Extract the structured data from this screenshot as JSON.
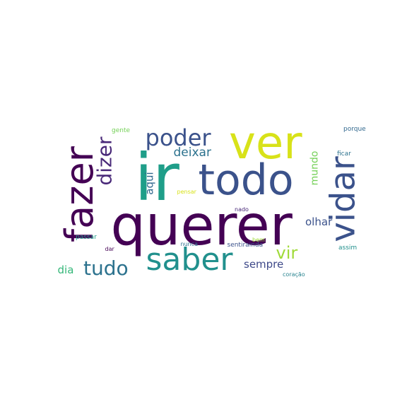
{
  "wordcloud": {
    "background_color": "#ffffff",
    "words": [
      {
        "text": "ir",
        "color": "#1f9e89",
        "rotated": false
      },
      {
        "text": "querer",
        "color": "#440154",
        "rotated": false
      },
      {
        "text": "fazer",
        "color": "#440154",
        "rotated": true
      },
      {
        "text": "ver",
        "color": "#d8e219",
        "rotated": false
      },
      {
        "text": "vidar",
        "color": "#3b528b",
        "rotated": true
      },
      {
        "text": "todo",
        "color": "#3b528b",
        "rotated": false
      },
      {
        "text": "saber",
        "color": "#21908d",
        "rotated": false
      },
      {
        "text": "poder",
        "color": "#3b528b",
        "rotated": false
      },
      {
        "text": "dizer",
        "color": "#482878",
        "rotated": true
      },
      {
        "text": "tudo",
        "color": "#2c728e",
        "rotated": false
      },
      {
        "text": "vir",
        "color": "#a0da39",
        "rotated": false
      },
      {
        "text": "deixar",
        "color": "#2c728e",
        "rotated": false
      },
      {
        "text": "sempre",
        "color": "#3e4989",
        "rotated": false
      },
      {
        "text": "aqui",
        "color": "#31688e",
        "rotated": true
      },
      {
        "text": "olhar",
        "color": "#3b528b",
        "rotated": false
      },
      {
        "text": "mundo",
        "color": "#73d056",
        "rotated": true
      },
      {
        "text": "dia",
        "color": "#35b779",
        "rotated": false
      },
      {
        "text": "gente",
        "color": "#73d056",
        "rotated": false
      },
      {
        "text": "porque",
        "color": "#31688e",
        "rotated": false
      },
      {
        "text": "ficar",
        "color": "#2c728e",
        "rotated": false
      },
      {
        "text": "pensar",
        "color": "#d8e219",
        "rotated": false
      },
      {
        "text": "nado",
        "color": "#482878",
        "rotated": false
      },
      {
        "text": "bem",
        "color": "#a0da39",
        "rotated": false
      },
      {
        "text": "nunca",
        "color": "#2c728e",
        "rotated": false
      },
      {
        "text": "passar",
        "color": "#1f9e89",
        "rotated": false
      },
      {
        "text": "dar",
        "color": "#440154",
        "rotated": false
      },
      {
        "text": "sentirainda",
        "color": "#3b528b",
        "rotated": false
      },
      {
        "text": "assim",
        "color": "#21908d",
        "rotated": false
      },
      {
        "text": "coração",
        "color": "#26828e",
        "rotated": false
      }
    ]
  }
}
